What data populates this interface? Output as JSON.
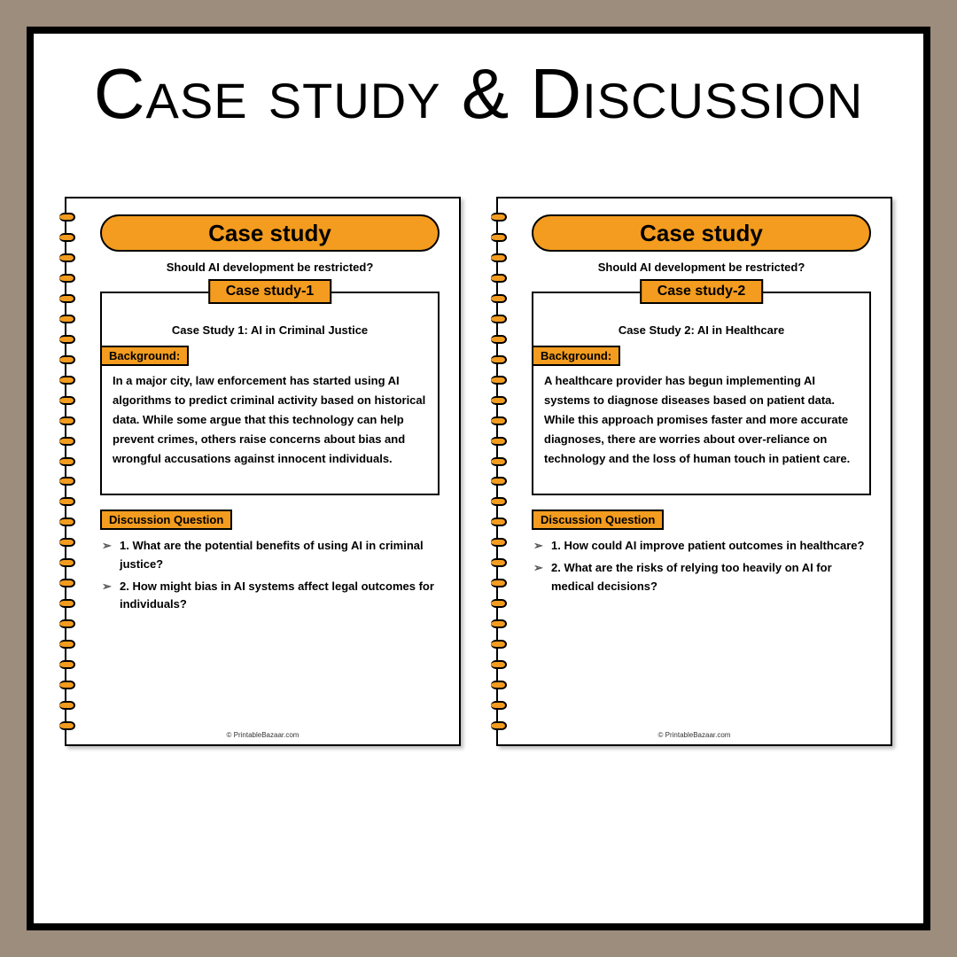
{
  "colors": {
    "page_bg": "#9d8d7d",
    "frame_bg": "#ffffff",
    "frame_border": "#000000",
    "accent": "#f39c1f",
    "text": "#000000"
  },
  "main_title": "Case study & Discussion",
  "footer_text": "© PrintableBazaar.com",
  "pages": [
    {
      "header": "Case study",
      "subtitle": "Should AI development be restricted?",
      "case_tab": "Case study-1",
      "case_heading": "Case Study 1: AI in Criminal Justice",
      "bg_label": "Background:",
      "bg_text": "In a major city, law enforcement has started using AI algorithms to predict criminal activity based on historical data. While some argue that this technology can help prevent crimes, others raise concerns about bias and wrongful accusations against innocent individuals.",
      "dq_label": "Discussion Question",
      "questions": [
        "1. What are the potential benefits of using AI in criminal justice?",
        "2. How might bias in AI systems affect legal outcomes for individuals?"
      ]
    },
    {
      "header": "Case study",
      "subtitle": "Should AI development be restricted?",
      "case_tab": "Case study-2",
      "case_heading": "Case Study 2: AI in Healthcare",
      "bg_label": "Background:",
      "bg_text": "A healthcare provider has begun implementing AI systems to diagnose diseases based on patient data. While this approach promises faster and more accurate diagnoses, there are worries about over-reliance on technology and the loss of human touch in patient care.",
      "dq_label": "Discussion Question",
      "questions": [
        "1. How could AI improve patient outcomes in healthcare?",
        "2. What are the risks of relying too heavily on AI for medical decisions?"
      ]
    }
  ]
}
